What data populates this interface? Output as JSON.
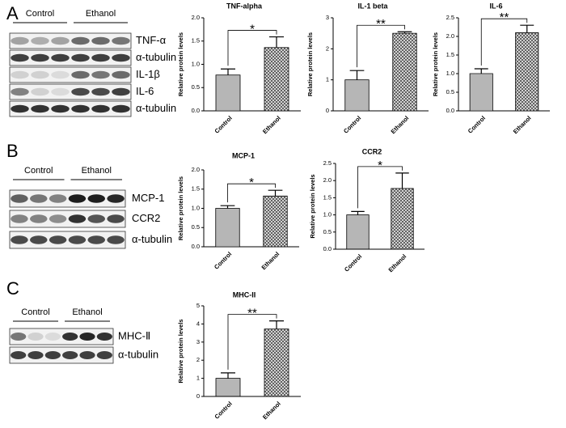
{
  "panels": [
    "A",
    "B",
    "C"
  ],
  "blots": [
    {
      "groups": [
        "Control",
        "Ethanol"
      ],
      "rows": [
        "TNF-α",
        "α-tubulin",
        "IL-1β",
        "IL-6",
        "α-tubulin"
      ]
    },
    {
      "groups": [
        "Control",
        "Ethanol"
      ],
      "rows": [
        "MCP-1",
        "CCR2",
        "α-tubulin"
      ]
    },
    {
      "groups": [
        "Control",
        "Ethanol"
      ],
      "rows": [
        "MHC-Ⅱ",
        "α-tubulin"
      ]
    }
  ],
  "chart_data": [
    {
      "type": "bar",
      "title": "TNF-alpha",
      "y_label": "Relative protein levels",
      "categories": [
        "Control",
        "Ethanol"
      ],
      "values": [
        0.77,
        1.36
      ],
      "errors": [
        0.13,
        0.23
      ],
      "annotation": "*",
      "colors": [
        "#8a8a8a",
        "#555555"
      ],
      "ylim": [
        0,
        2
      ],
      "yticks": [
        {
          "value": 0,
          "label": "0.0"
        },
        {
          "value": 0.5,
          "label": "0.5"
        },
        {
          "value": 1,
          "label": "1.0"
        },
        {
          "value": 1.5,
          "label": "1.5"
        },
        {
          "value": 2,
          "label": "2.0"
        }
      ]
    },
    {
      "type": "bar",
      "title": "IL-1 beta",
      "y_label": "Relative protein levels",
      "categories": [
        "Control",
        "Ethanol"
      ],
      "values": [
        1.0,
        2.5
      ],
      "errors": [
        0.3,
        0.05
      ],
      "annotation": "**",
      "colors": [
        "#8a8a8a",
        "#555555"
      ],
      "ylim": [
        0,
        3
      ],
      "yticks": [
        0,
        1,
        2,
        3
      ]
    },
    {
      "type": "bar",
      "title": "IL-6",
      "y_label": "Relative protein levels",
      "categories": [
        "Control",
        "Ethanol"
      ],
      "values": [
        1.0,
        2.1
      ],
      "errors": [
        0.13,
        0.2
      ],
      "annotation": "**",
      "colors": [
        "#8a8a8a",
        "#555555"
      ],
      "ylim": [
        0,
        2.5
      ],
      "yticks": [
        {
          "value": 0,
          "label": "0.0"
        },
        {
          "value": 0.5,
          "label": "0.5"
        },
        {
          "value": 1,
          "label": "1.0"
        },
        {
          "value": 1.5,
          "label": "1.5"
        },
        {
          "value": 2,
          "label": "2.0"
        },
        {
          "value": 2.5,
          "label": "2.5"
        }
      ]
    },
    {
      "type": "bar",
      "title": "MCP-1",
      "y_label": "Relative protein levels",
      "categories": [
        "Control",
        "Ethanol"
      ],
      "values": [
        1.0,
        1.32
      ],
      "errors": [
        0.07,
        0.15
      ],
      "annotation": "*",
      "colors": [
        "#8a8a8a",
        "#555555"
      ],
      "ylim": [
        0,
        2
      ],
      "yticks": [
        {
          "value": 0,
          "label": "0.0"
        },
        {
          "value": 0.5,
          "label": "0.5"
        },
        {
          "value": 1,
          "label": "1.0"
        },
        {
          "value": 1.5,
          "label": "1.5"
        },
        {
          "value": 2,
          "label": "2.0"
        }
      ]
    },
    {
      "type": "bar",
      "title": "CCR2",
      "y_label": "Relative protein levels",
      "categories": [
        "Control",
        "Ethanol"
      ],
      "values": [
        1.0,
        1.77
      ],
      "errors": [
        0.1,
        0.45
      ],
      "annotation": "*",
      "colors": [
        "#8a8a8a",
        "#555555"
      ],
      "ylim": [
        0,
        2.5
      ],
      "yticks": [
        {
          "value": 0,
          "label": "0.0"
        },
        {
          "value": 0.5,
          "label": "0.5"
        },
        {
          "value": 1,
          "label": "1.0"
        },
        {
          "value": 1.5,
          "label": "1.5"
        },
        {
          "value": 2,
          "label": "2.0"
        },
        {
          "value": 2.5,
          "label": "2.5"
        }
      ]
    },
    {
      "type": "bar",
      "title": "MHC-II",
      "y_label": "Relative protein levels",
      "categories": [
        "Control",
        "Ethanol"
      ],
      "values": [
        1.0,
        3.72
      ],
      "errors": [
        0.3,
        0.45
      ],
      "annotation": "**",
      "colors": [
        "#8a8a8a",
        "#555555"
      ],
      "ylim": [
        0,
        5
      ],
      "yticks": [
        0,
        1,
        2,
        3,
        4,
        5
      ]
    }
  ]
}
